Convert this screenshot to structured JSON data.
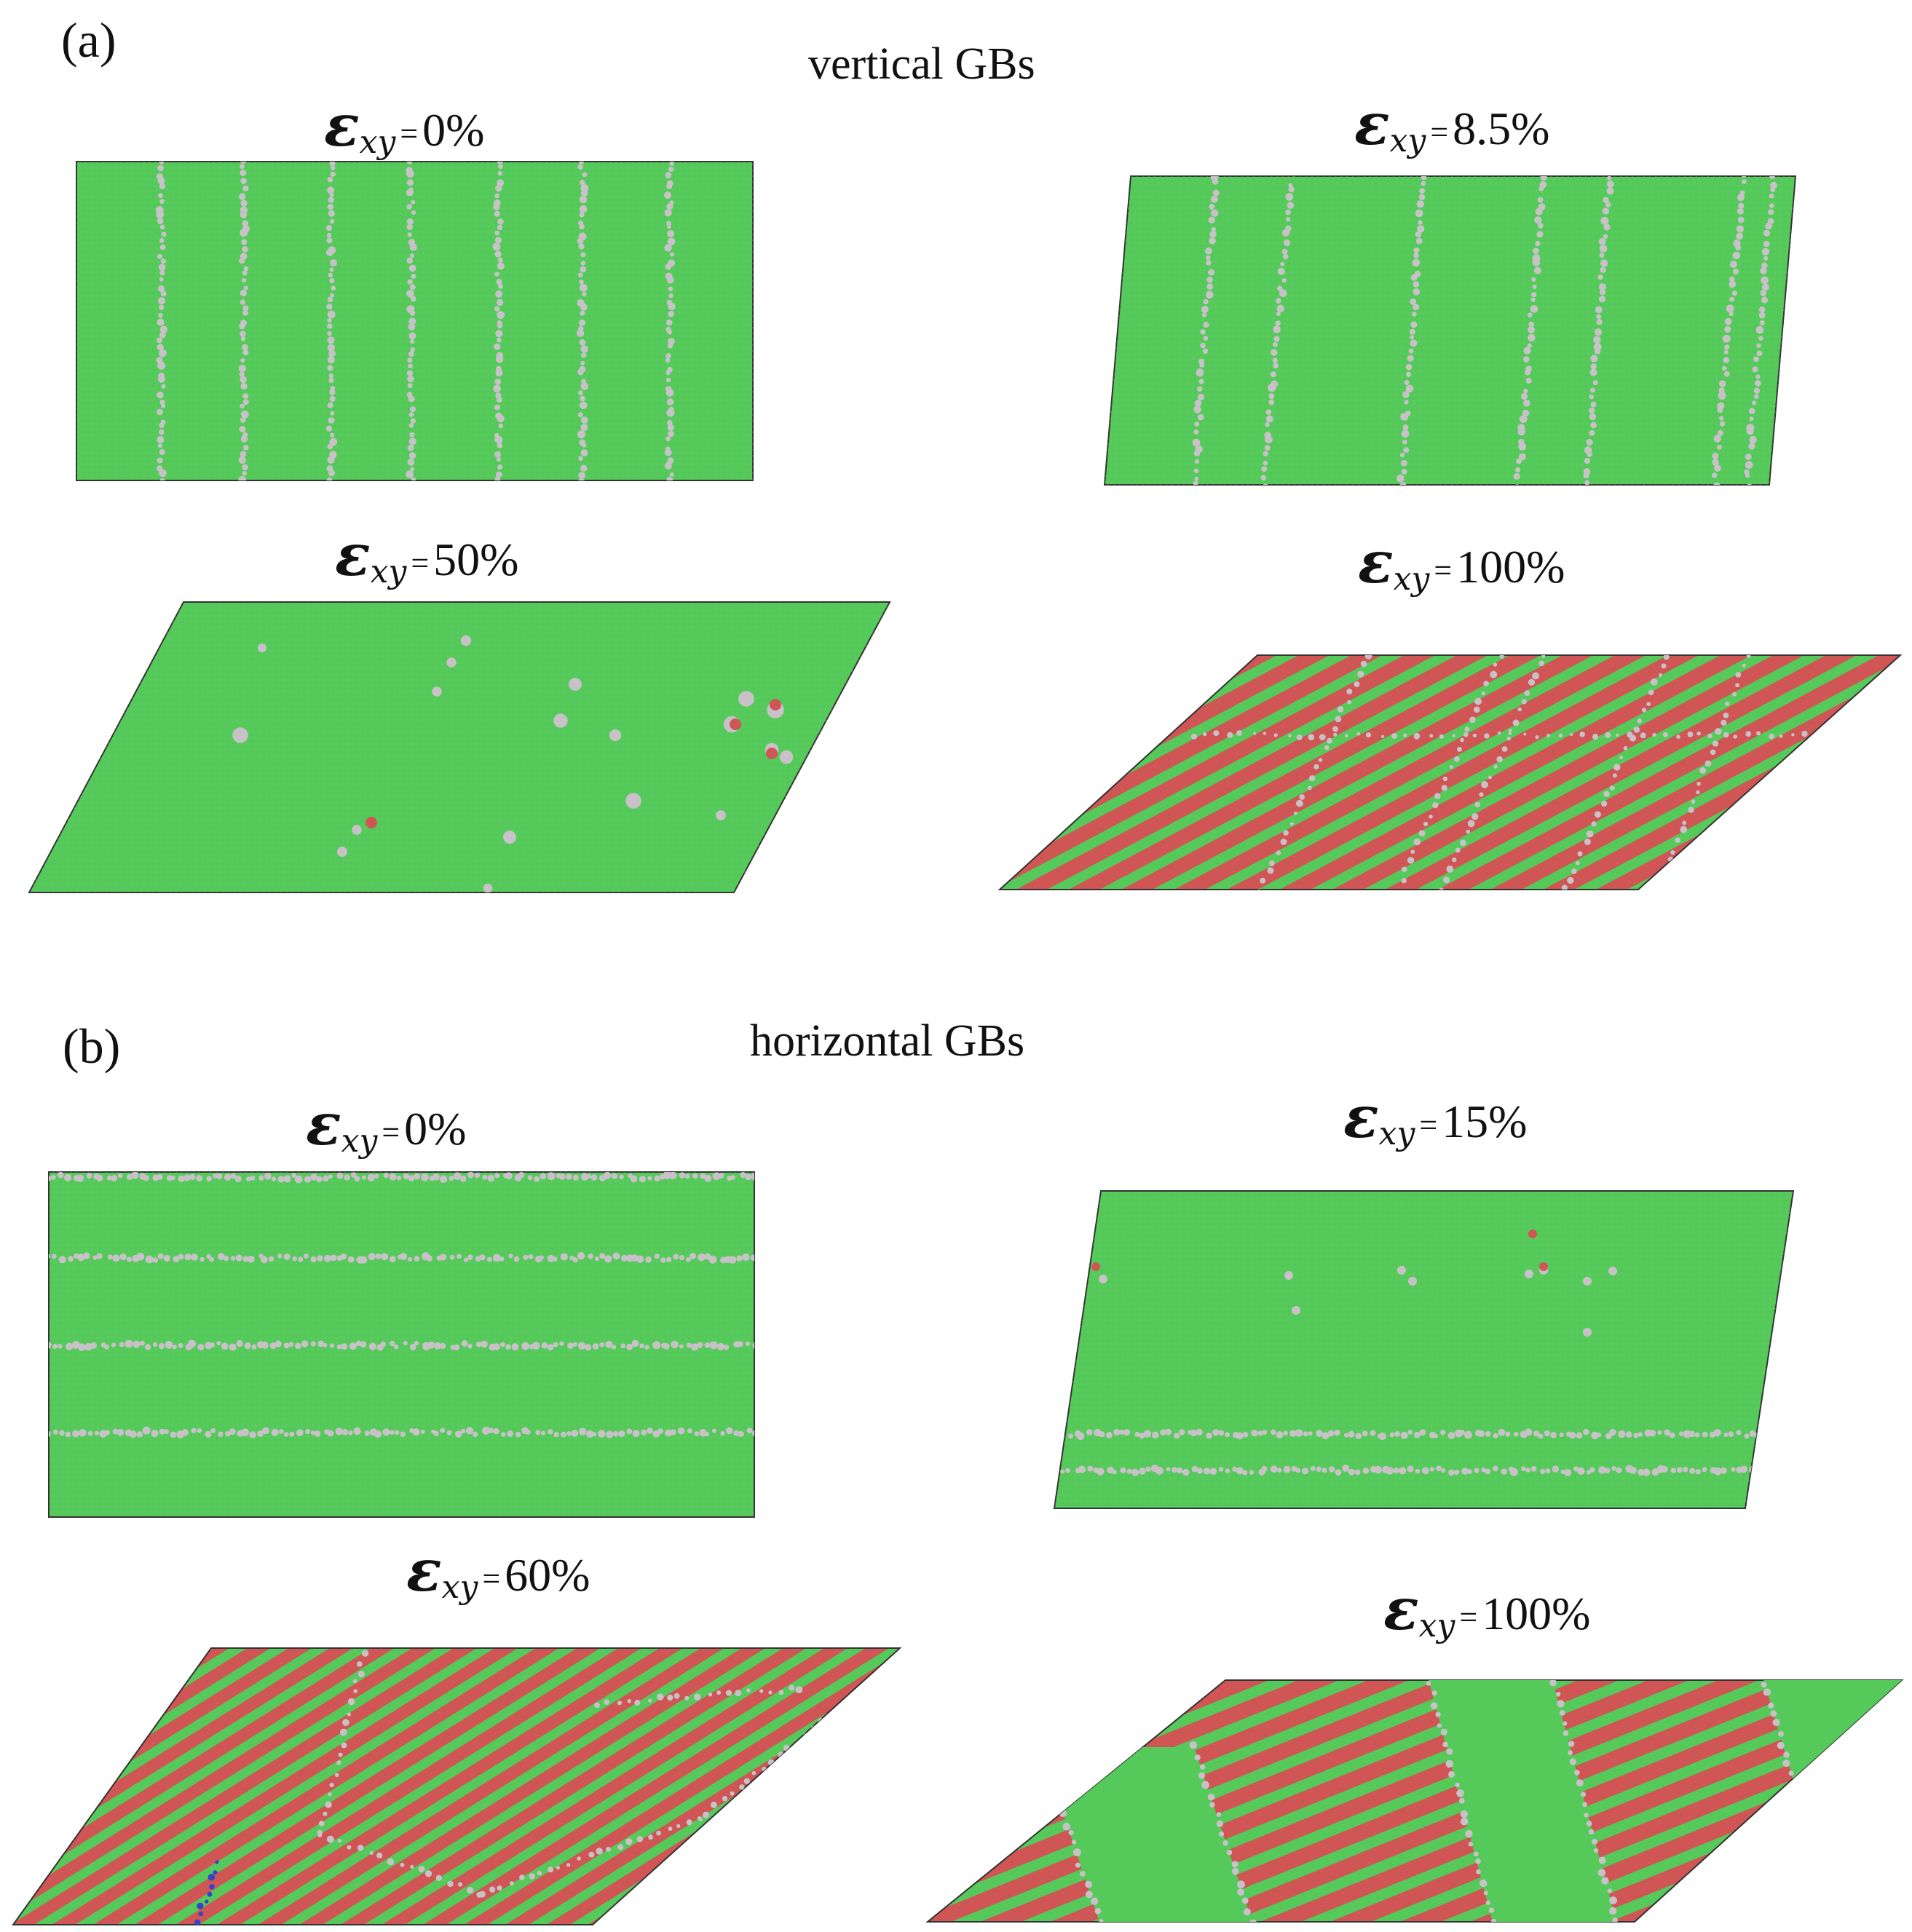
{
  "colors": {
    "grain": "#56c95b",
    "grain_dark": "#48b64d",
    "gb": "#c8c2c8",
    "stacking_fault": "#d05555",
    "defect_blue": "#3344cc",
    "text": "#111111"
  },
  "section_a": {
    "label": "(a)",
    "title": "vertical GBs",
    "panels": [
      {
        "id": "a1",
        "strain_symbol": "ε",
        "subscript": "xy",
        "relation": "=",
        "value": "0%",
        "pattern": "vertical-gbs"
      },
      {
        "id": "a2",
        "strain_symbol": "ε",
        "subscript": "xy",
        "relation": "=",
        "value": "8.5%",
        "pattern": "vertical-gbs-sheared"
      },
      {
        "id": "a3",
        "strain_symbol": "ε",
        "subscript": "xy",
        "relation": "=",
        "value": "50%",
        "pattern": "scattered-defects"
      },
      {
        "id": "a4",
        "strain_symbol": "ε",
        "subscript": "xy",
        "relation": "=",
        "value": "100%",
        "pattern": "stacking-fault-stripes"
      }
    ]
  },
  "section_b": {
    "label": "(b)",
    "title": "horizontal GBs",
    "panels": [
      {
        "id": "b1",
        "strain_symbol": "ε",
        "subscript": "xy",
        "relation": "=",
        "value": "0%",
        "pattern": "horizontal-gbs"
      },
      {
        "id": "b2",
        "strain_symbol": "ε",
        "subscript": "xy",
        "relation": "=",
        "value": "15%",
        "pattern": "horizontal-gbs-sheared"
      },
      {
        "id": "b3",
        "strain_symbol": "ε",
        "subscript": "xy",
        "relation": "=",
        "value": "60%",
        "pattern": "stacking-fault-stripes"
      },
      {
        "id": "b4",
        "strain_symbol": "ε",
        "subscript": "xy",
        "relation": "=",
        "value": "100%",
        "pattern": "banded-stripes"
      }
    ]
  }
}
